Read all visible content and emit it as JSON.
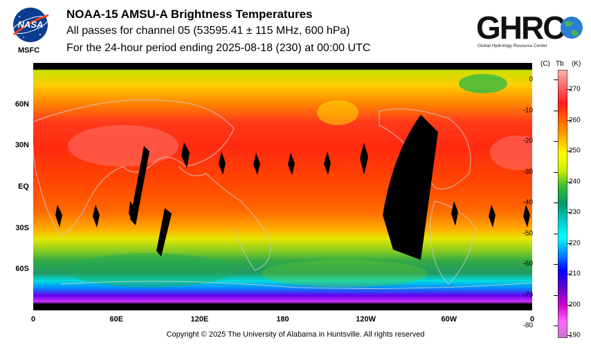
{
  "header": {
    "title": "NOAA-15 AMSU-A Brightness Temperatures",
    "subtitle": "All passes for channel 05 (53595.41 ± 115 MHz, 600 hPa)",
    "period": "For the 24-hour period ending 2025-08-18 (230) at 00:00 UTC"
  },
  "nasa_logo": {
    "text": "NASA",
    "caption": "MSFC"
  },
  "ghrc_logo": {
    "text": "GHRC",
    "subtitle": "Global Hydrology Resource Center"
  },
  "map": {
    "lat_labels": [
      {
        "text": "60N",
        "lat": 60
      },
      {
        "text": "30N",
        "lat": 30
      },
      {
        "text": "EQ",
        "lat": 0
      },
      {
        "text": "30S",
        "lat": -30
      },
      {
        "text": "60S",
        "lat": -60
      }
    ],
    "lon_labels": [
      {
        "text": "0",
        "lon": 0
      },
      {
        "text": "60E",
        "lon": 60
      },
      {
        "text": "120E",
        "lon": 120
      },
      {
        "text": "180",
        "lon": 180
      },
      {
        "text": "120W",
        "lon": 240
      },
      {
        "text": "60W",
        "lon": 300
      },
      {
        "text": "0",
        "lon": 360
      }
    ]
  },
  "colorbar": {
    "header_c": "(C)",
    "header_tb": "Tb",
    "header_k": "(K)",
    "celsius_ticks": [
      "0",
      "-10",
      "-20",
      "-30",
      "-40",
      "-50",
      "-60",
      "-70",
      "-80"
    ],
    "kelvin_ticks": [
      "270",
      "260",
      "250",
      "240",
      "230",
      "220",
      "210",
      "200",
      "190"
    ],
    "colors": [
      "#ffb3b3",
      "#ff6666",
      "#ff1a1a",
      "#ff6600",
      "#ffaa00",
      "#ffff00",
      "#ccee00",
      "#33bb33",
      "#009966",
      "#00cccc",
      "#00ffff",
      "#0088ff",
      "#0000ff",
      "#6600cc",
      "#cc00cc",
      "#ff66ff",
      "#cc77cc"
    ]
  },
  "footer": {
    "copyright": "Copyright © 2025 The University of Alabama in Huntsville.  All rights reserved"
  }
}
